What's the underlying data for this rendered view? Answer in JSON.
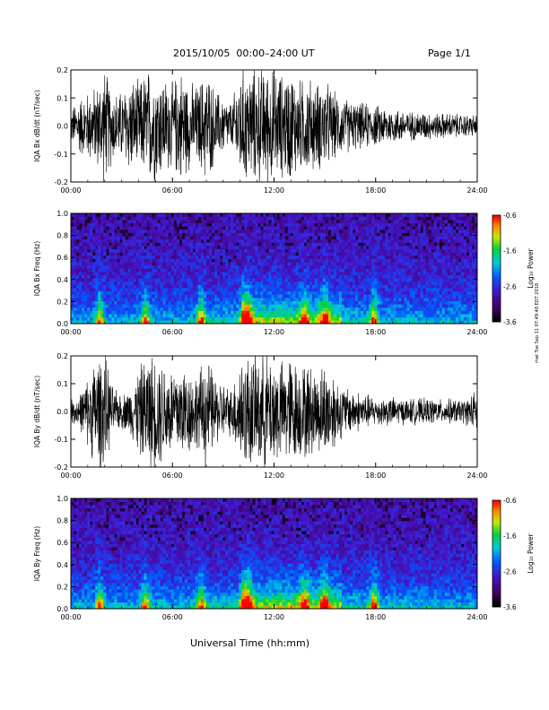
{
  "header": {
    "title": "2015/10/05  00:00–24:00 UT",
    "page": "Page 1/1"
  },
  "stamp": "mat Tue Sep 11 07:49:48 EDT 2018",
  "x_axis_title": "Universal Time (hh:mm)",
  "chart_data": [
    {
      "type": "line",
      "ylabel": "IQA Bx dB/dt (nT/sec)",
      "xlim": [
        "00:00",
        "24:00"
      ],
      "ylim": [
        -0.2,
        0.2
      ],
      "x_ticks": [
        "00:00",
        "06:00",
        "12:00",
        "18:00",
        "24:00"
      ],
      "y_ticks": [
        "-0.2",
        "-0.1",
        "0.0",
        "0.1",
        "0.2"
      ],
      "envelope": {
        "x_hours": [
          0,
          0.5,
          1,
          1.5,
          2,
          2.5,
          3,
          3.5,
          4,
          4.5,
          5,
          5.5,
          6,
          6.5,
          7,
          7.5,
          8,
          8.5,
          9,
          9.5,
          10,
          10.5,
          11,
          11.5,
          12,
          12.5,
          13,
          13.5,
          14,
          14.5,
          15,
          15.5,
          16,
          16.5,
          17,
          17.5,
          18,
          18.5,
          19,
          19.5,
          20,
          20.5,
          21,
          21.5,
          22,
          22.5,
          23,
          23.5,
          24
        ],
        "amplitude": [
          0.06,
          0.1,
          0.12,
          0.14,
          0.2,
          0.12,
          0.12,
          0.17,
          0.15,
          0.2,
          0.2,
          0.17,
          0.15,
          0.2,
          0.15,
          0.14,
          0.2,
          0.13,
          0.1,
          0.08,
          0.2,
          0.2,
          0.2,
          0.2,
          0.2,
          0.18,
          0.2,
          0.16,
          0.17,
          0.15,
          0.16,
          0.12,
          0.1,
          0.09,
          0.08,
          0.08,
          0.07,
          0.07,
          0.06,
          0.06,
          0.05,
          0.05,
          0.05,
          0.045,
          0.045,
          0.045,
          0.04,
          0.04,
          0.04
        ]
      }
    },
    {
      "type": "heatmap",
      "ylabel": "IQA Bx Freq (Hz)",
      "xlim": [
        "00:00",
        "24:00"
      ],
      "ylim": [
        0.0,
        1.0
      ],
      "x_ticks": [
        "00:00",
        "06:00",
        "12:00",
        "18:00",
        "24:00"
      ],
      "y_ticks": [
        "0.0",
        "0.2",
        "0.4",
        "0.6",
        "0.8",
        "1.0"
      ],
      "colorbar": {
        "label": "Log₁₀ Power",
        "range": [
          -3.6,
          -0.6
        ],
        "ticks": [
          "-0.6",
          "-1.6",
          "-2.6",
          "-3.6"
        ]
      },
      "bursts_hours": [
        1.7,
        4.4,
        7.7,
        10.2,
        10.5,
        13.8,
        15.0,
        17.9
      ],
      "note": ""
    },
    {
      "type": "line",
      "ylabel": "IQA By dB/dt (nT/sec)",
      "xlim": [
        "00:00",
        "24:00"
      ],
      "ylim": [
        -0.2,
        0.2
      ],
      "x_ticks": [
        "00:00",
        "06:00",
        "12:00",
        "18:00",
        "24:00"
      ],
      "y_ticks": [
        "-0.2",
        "-0.1",
        "0.0",
        "0.1",
        "0.2"
      ],
      "envelope": {
        "x_hours": [
          0,
          0.5,
          1,
          1.5,
          2,
          2.5,
          3,
          3.5,
          4,
          4.5,
          5,
          5.5,
          6,
          6.5,
          7,
          7.5,
          8,
          8.5,
          9,
          9.5,
          10,
          10.5,
          11,
          11.5,
          12,
          12.5,
          13,
          13.5,
          14,
          14.5,
          15,
          15.5,
          16,
          16.5,
          17,
          17.5,
          18,
          18.5,
          19,
          19.5,
          20,
          20.5,
          21,
          21.5,
          22,
          22.5,
          23,
          23.5,
          24
        ],
        "amplitude": [
          0.04,
          0.06,
          0.12,
          0.2,
          0.2,
          0.08,
          0.06,
          0.08,
          0.15,
          0.2,
          0.2,
          0.18,
          0.16,
          0.17,
          0.15,
          0.13,
          0.2,
          0.12,
          0.1,
          0.08,
          0.2,
          0.2,
          0.2,
          0.2,
          0.2,
          0.17,
          0.2,
          0.16,
          0.17,
          0.14,
          0.17,
          0.14,
          0.09,
          0.08,
          0.07,
          0.06,
          0.05,
          0.05,
          0.05,
          0.045,
          0.045,
          0.045,
          0.045,
          0.045,
          0.04,
          0.045,
          0.04,
          0.05,
          0.08
        ]
      }
    },
    {
      "type": "heatmap",
      "ylabel": "IQA By Freq (Hz)",
      "xlim": [
        "00:00",
        "24:00"
      ],
      "ylim": [
        0.0,
        1.0
      ],
      "x_ticks": [
        "00:00",
        "06:00",
        "12:00",
        "18:00",
        "24:00"
      ],
      "y_ticks": [
        "0.0",
        "0.2",
        "0.4",
        "0.6",
        "0.8",
        "1.0"
      ],
      "colorbar": {
        "label": "Log₁₀ Power",
        "range": [
          -3.6,
          -0.6
        ],
        "ticks": [
          "-0.6",
          "-1.6",
          "-2.6",
          "-3.6"
        ]
      },
      "bursts_hours": [
        1.7,
        4.4,
        7.7,
        10.2,
        10.5,
        13.8,
        15.0,
        17.9
      ]
    }
  ]
}
